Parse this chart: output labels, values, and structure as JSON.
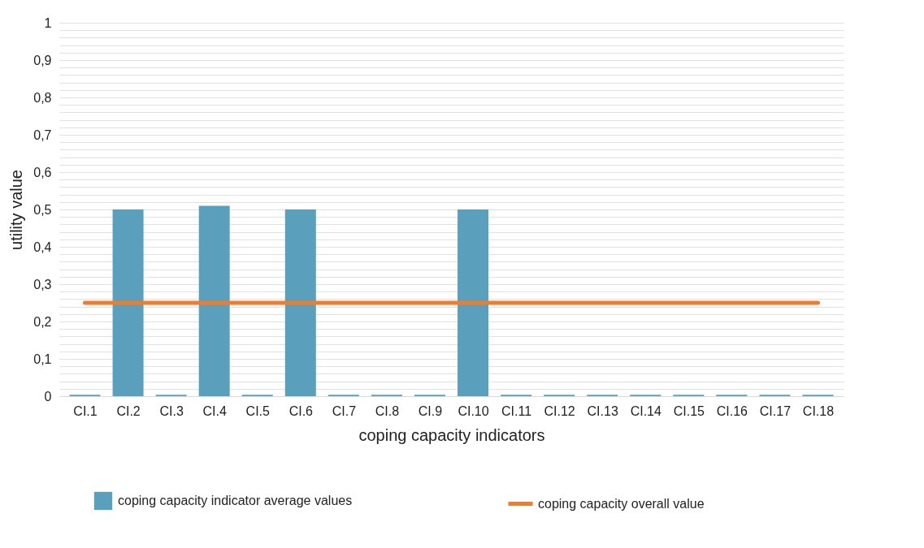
{
  "chart_data": {
    "type": "bar",
    "xlabel": "coping capacity indicators",
    "ylabel": "utility value",
    "categories": [
      "CI.1",
      "CI.2",
      "CI.3",
      "CI.4",
      "CI.5",
      "CI.6",
      "CI.7",
      "CI.8",
      "CI.9",
      "CI.10",
      "CI.11",
      "CI.12",
      "CI.13",
      "CI.14",
      "CI.15",
      "CI.16",
      "CI.17",
      "CI.18"
    ],
    "series": [
      {
        "name": "coping capacity indicator average values",
        "color": "#5aa0bd",
        "values": [
          0.004,
          0.5,
          0.004,
          0.51,
          0.004,
          0.5,
          0.004,
          0.004,
          0.004,
          0.5,
          0.004,
          0.004,
          0.004,
          0.004,
          0.004,
          0.004,
          0.004,
          0.004
        ]
      },
      {
        "name": "coping capacity overall value",
        "type": "line",
        "color": "#ed7d31",
        "values": [
          0.25,
          0.25,
          0.25,
          0.25,
          0.25,
          0.25,
          0.25,
          0.25,
          0.25,
          0.25,
          0.25,
          0.25,
          0.25,
          0.25,
          0.25,
          0.25,
          0.25,
          0.25
        ]
      }
    ],
    "ylim": [
      0,
      1
    ],
    "yticks": [
      {
        "value": 0,
        "label": "0"
      },
      {
        "value": 0.02,
        "label": null
      },
      {
        "value": 0.04,
        "label": null
      },
      {
        "value": 0.06,
        "label": null
      },
      {
        "value": 0.08,
        "label": null
      },
      {
        "value": 0.1,
        "label": "0,1"
      },
      {
        "value": 0.12,
        "label": null
      },
      {
        "value": 0.14,
        "label": null
      },
      {
        "value": 0.16,
        "label": null
      },
      {
        "value": 0.18,
        "label": null
      },
      {
        "value": 0.2,
        "label": "0,2"
      },
      {
        "value": 0.22,
        "label": null
      },
      {
        "value": 0.24,
        "label": null
      },
      {
        "value": 0.26,
        "label": null
      },
      {
        "value": 0.28,
        "label": null
      },
      {
        "value": 0.3,
        "label": "0,3"
      },
      {
        "value": 0.32,
        "label": null
      },
      {
        "value": 0.34,
        "label": null
      },
      {
        "value": 0.36,
        "label": null
      },
      {
        "value": 0.38,
        "label": null
      },
      {
        "value": 0.4,
        "label": "0,4"
      },
      {
        "value": 0.42,
        "label": null
      },
      {
        "value": 0.44,
        "label": null
      },
      {
        "value": 0.46,
        "label": null
      },
      {
        "value": 0.48,
        "label": null
      },
      {
        "value": 0.5,
        "label": "0,5"
      },
      {
        "value": 0.52,
        "label": null
      },
      {
        "value": 0.54,
        "label": null
      },
      {
        "value": 0.56,
        "label": null
      },
      {
        "value": 0.58,
        "label": null
      },
      {
        "value": 0.6,
        "label": "0,6"
      },
      {
        "value": 0.62,
        "label": null
      },
      {
        "value": 0.64,
        "label": null
      },
      {
        "value": 0.66,
        "label": null
      },
      {
        "value": 0.68,
        "label": null
      },
      {
        "value": 0.7,
        "label": "0,7"
      },
      {
        "value": 0.72,
        "label": null
      },
      {
        "value": 0.74,
        "label": null
      },
      {
        "value": 0.76,
        "label": null
      },
      {
        "value": 0.78,
        "label": null
      },
      {
        "value": 0.8,
        "label": "0,8"
      },
      {
        "value": 0.82,
        "label": null
      },
      {
        "value": 0.84,
        "label": null
      },
      {
        "value": 0.86,
        "label": null
      },
      {
        "value": 0.88,
        "label": null
      },
      {
        "value": 0.9,
        "label": "0,9"
      },
      {
        "value": 0.92,
        "label": null
      },
      {
        "value": 0.94,
        "label": null
      },
      {
        "value": 0.96,
        "label": null
      },
      {
        "value": 0.98,
        "label": null
      },
      {
        "value": 1,
        "label": "1"
      }
    ],
    "grid": true,
    "legend": "bottom"
  }
}
